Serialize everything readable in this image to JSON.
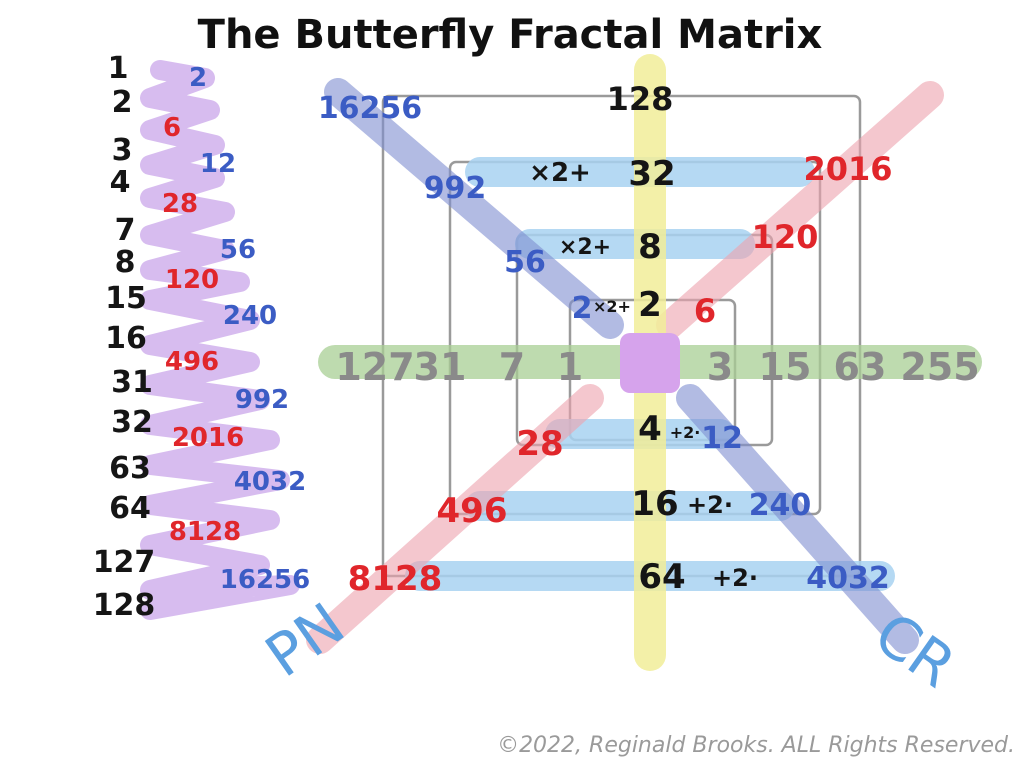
{
  "title": "The Butterfly Fractal Matrix",
  "colors": {
    "black": "#151515",
    "blue": "#3b5cc4",
    "red": "#e0262b",
    "gray": "#8a8a8a",
    "purple_wash": "#c9a6ea",
    "lightblue_wash": "#a9d3f2",
    "green_band": "#a9cf95",
    "yellow_band": "#f2ee9a",
    "center": "#d6a3ec",
    "pink_band": "#eea3ae",
    "navy_band": "#7f8fd1"
  },
  "left_ladder": [
    {
      "n": "1",
      "v": "2",
      "vc": "blue"
    },
    {
      "n": "2",
      "v": "6",
      "vc": "red"
    },
    {
      "n": "3",
      "v": "12",
      "vc": "blue"
    },
    {
      "n": "4",
      "v": "28",
      "vc": "red"
    },
    {
      "n": "7",
      "v": "56",
      "vc": "blue"
    },
    {
      "n": "8",
      "v": "120",
      "vc": "red"
    },
    {
      "n": "15",
      "v": "240",
      "vc": "blue"
    },
    {
      "n": "16",
      "v": "496",
      "vc": "red"
    },
    {
      "n": "31",
      "v": "992",
      "vc": "blue"
    },
    {
      "n": "32",
      "v": "2016",
      "vc": "red"
    },
    {
      "n": "63",
      "v": "4032",
      "vc": "blue"
    },
    {
      "n": "64",
      "v": "8128",
      "vc": "red"
    },
    {
      "n": "127",
      "v": "16256",
      "vc": "blue"
    },
    {
      "n": "128",
      "v": "",
      "vc": "blue"
    }
  ],
  "matrix": {
    "top_center": "128",
    "upper_center": [
      "32",
      "8",
      "2"
    ],
    "upper_ops": [
      "×2+",
      "×2+",
      "×2+"
    ],
    "lower_center": [
      "4",
      "16",
      "64"
    ],
    "lower_ops": [
      "+2·",
      "+2·",
      "+2·"
    ],
    "diag_blue_upper": [
      "16256",
      "992",
      "56",
      "2"
    ],
    "diag_red_upper": [
      "2016",
      "120",
      "6"
    ],
    "diag_red_lower": [
      "28",
      "496",
      "8128"
    ],
    "diag_blue_lower": [
      "12",
      "240",
      "4032"
    ],
    "horizontal_left": [
      "127",
      "31",
      "7",
      "1"
    ],
    "horizontal_right": [
      "3",
      "15",
      "63",
      "255"
    ],
    "label_left": "PN",
    "label_right": "CR"
  },
  "copyright": "©2022, Reginald Brooks. ALL Rights Reserved."
}
